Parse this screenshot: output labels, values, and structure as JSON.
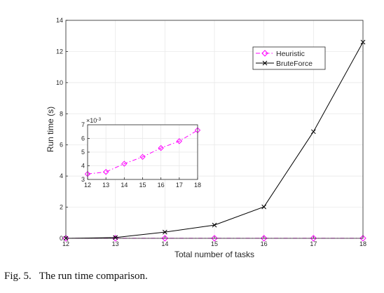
{
  "chart_data": [
    {
      "type": "line",
      "title": "",
      "xlabel": "Total number of tasks",
      "ylabel": "Run time (s)",
      "x": [
        12,
        13,
        14,
        15,
        16,
        17,
        18
      ],
      "xlim": [
        12,
        18
      ],
      "ylim": [
        0,
        14
      ],
      "xticks": [
        "12",
        "13",
        "14",
        "15",
        "16",
        "17",
        "18"
      ],
      "yticks": [
        "0",
        "2",
        "4",
        "6",
        "8",
        "10",
        "12",
        "14"
      ],
      "grid": true,
      "legend_position": "top-right",
      "series": [
        {
          "name": "Heuristic",
          "values": [
            0.0034,
            0.0036,
            0.0041,
            0.0046,
            0.0053,
            0.0058,
            0.0066
          ],
          "color": "#ff00ff",
          "marker": "diamond",
          "linestyle": "dash-dot"
        },
        {
          "name": "BruteForce",
          "values": [
            0.0,
            0.05,
            0.4,
            0.85,
            2.02,
            6.85,
            12.6
          ],
          "color": "#000000",
          "marker": "x",
          "linestyle": "solid"
        }
      ]
    },
    {
      "type": "line",
      "title": "",
      "x": [
        12,
        13,
        14,
        15,
        16,
        17,
        18
      ],
      "xlim": [
        12,
        18
      ],
      "ylim": [
        3,
        7
      ],
      "y_exponent": "×10",
      "y_exponent_power": "-3",
      "xticks": [
        "12",
        "13",
        "14",
        "15",
        "16",
        "17",
        "18"
      ],
      "yticks": [
        "3",
        "4",
        "5",
        "6",
        "7"
      ],
      "grid": true,
      "series": [
        {
          "values": [
            3.4,
            3.55,
            4.15,
            4.65,
            5.3,
            5.8,
            6.6
          ],
          "color": "#ff00ff",
          "marker": "diamond",
          "linestyle": "dash-dot"
        }
      ]
    }
  ],
  "caption": "Fig. 5.   The run time comparison."
}
